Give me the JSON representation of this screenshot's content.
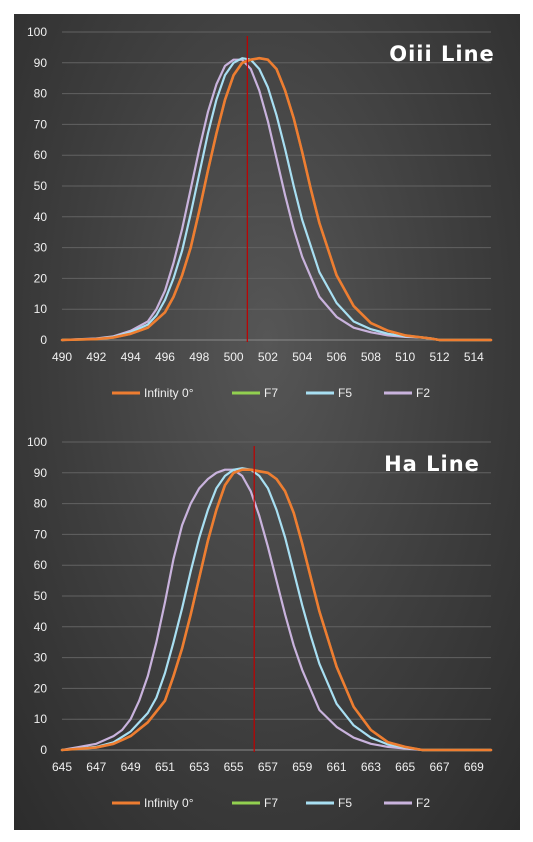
{
  "legend": [
    "Infinity 0°",
    "F7",
    "F5",
    "F2"
  ],
  "colors": {
    "Infinity 0°": "#ee7d31",
    "F7": "#92d050",
    "F5": "#a8dff2",
    "F2": "#c9b3dd",
    "marker": "#c00000",
    "grid": "#626262"
  },
  "chart_data": [
    {
      "type": "line",
      "title": "Oiii Line",
      "ylim": [
        0,
        100
      ],
      "yticks": [
        0,
        10,
        20,
        30,
        40,
        50,
        60,
        70,
        80,
        90,
        100
      ],
      "xlim": [
        490,
        515
      ],
      "xticks": [
        490,
        492,
        494,
        496,
        498,
        500,
        502,
        504,
        506,
        508,
        510,
        512,
        514
      ],
      "marker_x": 500.8,
      "series": [
        {
          "name": "Infinity 0°",
          "x": [
            490,
            492,
            493,
            494,
            495,
            496,
            496.5,
            497,
            497.5,
            498,
            498.5,
            499,
            499.5,
            500,
            500.5,
            501,
            501.5,
            502,
            502.5,
            503,
            503.5,
            504,
            504.5,
            505,
            506,
            507,
            508,
            509,
            510,
            511,
            511.5,
            512,
            515
          ],
          "y": [
            0,
            0.3,
            0.8,
            2,
            4,
            9,
            14,
            21,
            30,
            42,
            55,
            67,
            78,
            86,
            90,
            91,
            91.5,
            91,
            88,
            81,
            72,
            61,
            49,
            38,
            21,
            11,
            5.5,
            3,
            1.5,
            0.8,
            0.5,
            0,
            0
          ]
        },
        {
          "name": "F7",
          "x": [
            490,
            492,
            493,
            494,
            495,
            496,
            496.5,
            497,
            497.5,
            498,
            498.5,
            499,
            499.5,
            500,
            500.5,
            501,
            501.5,
            502,
            502.5,
            503,
            503.5,
            504,
            504.5,
            505,
            506,
            507,
            508,
            509,
            510,
            511,
            511.5,
            512,
            515
          ],
          "y": [
            0,
            0.3,
            0.8,
            2,
            4,
            9,
            14,
            21,
            30,
            42,
            55,
            67,
            78,
            86,
            90,
            91,
            91.5,
            91,
            88,
            81,
            72,
            61,
            49,
            38,
            21,
            11,
            5.5,
            3,
            1.5,
            0.8,
            0.5,
            0,
            0
          ]
        },
        {
          "name": "F5",
          "x": [
            490,
            492,
            493,
            494,
            495,
            495.5,
            496,
            496.5,
            497,
            497.5,
            498,
            498.5,
            499,
            499.5,
            500,
            500.5,
            501,
            501.5,
            502,
            502.5,
            503,
            503.5,
            504,
            505,
            506,
            507,
            508,
            509,
            510,
            511,
            511.5,
            512,
            515
          ],
          "y": [
            0,
            0.4,
            1,
            2.5,
            5,
            8,
            13,
            20,
            29,
            41,
            54,
            67,
            78,
            86,
            90,
            91.5,
            91,
            88,
            82,
            73,
            62,
            50,
            39,
            22,
            12,
            6,
            3.5,
            2,
            1.2,
            0.8,
            0.5,
            0,
            0
          ]
        },
        {
          "name": "F2",
          "x": [
            490,
            492,
            493,
            494,
            495,
            495.5,
            496,
            496.5,
            497,
            497.5,
            498,
            498.5,
            499,
            499.5,
            500,
            500.5,
            501,
            501.5,
            502,
            502.5,
            503,
            503.5,
            504,
            505,
            506,
            507,
            508,
            509,
            510,
            511,
            511.5,
            512,
            515
          ],
          "y": [
            0,
            0.5,
            1.2,
            3,
            6,
            10,
            16,
            25,
            36,
            49,
            62,
            74,
            83,
            89,
            91,
            91,
            88,
            81,
            71,
            59,
            47,
            36,
            27,
            14,
            7.5,
            4,
            2.5,
            1.5,
            1,
            0.8,
            0.5,
            0,
            0
          ]
        }
      ]
    },
    {
      "type": "line",
      "title": "Ha Line",
      "ylim": [
        0,
        100
      ],
      "yticks": [
        0,
        10,
        20,
        30,
        40,
        50,
        60,
        70,
        80,
        90,
        100
      ],
      "xlim": [
        645,
        670
      ],
      "xticks": [
        645,
        647,
        649,
        651,
        653,
        655,
        657,
        659,
        661,
        663,
        665,
        667,
        669
      ],
      "marker_x": 656.2,
      "series": [
        {
          "name": "Infinity 0°",
          "x": [
            645,
            647,
            648,
            649,
            650,
            651,
            651.5,
            652,
            652.5,
            653,
            653.5,
            654,
            654.5,
            655,
            655.5,
            656,
            656.5,
            657,
            657.5,
            658,
            658.5,
            659,
            659.5,
            660,
            661,
            662,
            663,
            664,
            665,
            666,
            670
          ],
          "y": [
            0,
            0.8,
            2,
            4.5,
            9,
            16,
            24,
            33,
            44,
            56,
            68,
            78,
            86,
            90,
            91,
            91,
            90.5,
            90,
            88,
            84,
            77,
            67,
            56,
            45,
            27,
            14,
            6.5,
            2.5,
            1,
            0,
            0
          ]
        },
        {
          "name": "F7",
          "x": [
            645,
            647,
            648,
            649,
            650,
            651,
            651.5,
            652,
            652.5,
            653,
            653.5,
            654,
            654.5,
            655,
            655.5,
            656,
            656.5,
            657,
            657.5,
            658,
            658.5,
            659,
            659.5,
            660,
            661,
            662,
            663,
            664,
            665,
            666,
            670
          ],
          "y": [
            0,
            0.8,
            2,
            4.5,
            9,
            16,
            24,
            33,
            44,
            56,
            68,
            78,
            86,
            90,
            91,
            91,
            90.5,
            90,
            88,
            84,
            77,
            67,
            56,
            45,
            27,
            14,
            6.5,
            2.5,
            1,
            0,
            0
          ]
        },
        {
          "name": "F5",
          "x": [
            645,
            647,
            648,
            649,
            650,
            650.5,
            651,
            651.5,
            652,
            652.5,
            653,
            653.5,
            654,
            654.5,
            655,
            655.5,
            656,
            656.5,
            657,
            657.5,
            658,
            658.5,
            659,
            659.5,
            660,
            661,
            662,
            663,
            664,
            665,
            666,
            670
          ],
          "y": [
            0,
            1,
            2.5,
            6,
            12,
            17,
            25,
            35,
            46,
            58,
            69,
            78,
            85,
            89,
            91,
            91.5,
            91,
            89,
            85,
            78,
            69,
            58,
            47,
            37,
            28,
            15,
            8,
            4,
            1.8,
            0.8,
            0,
            0
          ]
        },
        {
          "name": "F2",
          "x": [
            645,
            646,
            647,
            648,
            648.5,
            649,
            649.5,
            650,
            650.5,
            651,
            651.5,
            652,
            652.5,
            653,
            653.5,
            654,
            654.5,
            655,
            655.5,
            656,
            656.5,
            657,
            657.5,
            658,
            658.5,
            659,
            660,
            661,
            662,
            663,
            664,
            665,
            666,
            670
          ],
          "y": [
            0,
            1,
            2,
            4.5,
            6.5,
            10,
            16,
            24,
            35,
            48,
            62,
            73,
            80,
            85,
            88,
            90,
            91,
            91,
            89,
            84,
            76,
            66,
            55,
            44,
            34,
            26,
            13,
            7.5,
            4,
            2,
            1,
            0.5,
            0,
            0
          ]
        }
      ]
    }
  ]
}
